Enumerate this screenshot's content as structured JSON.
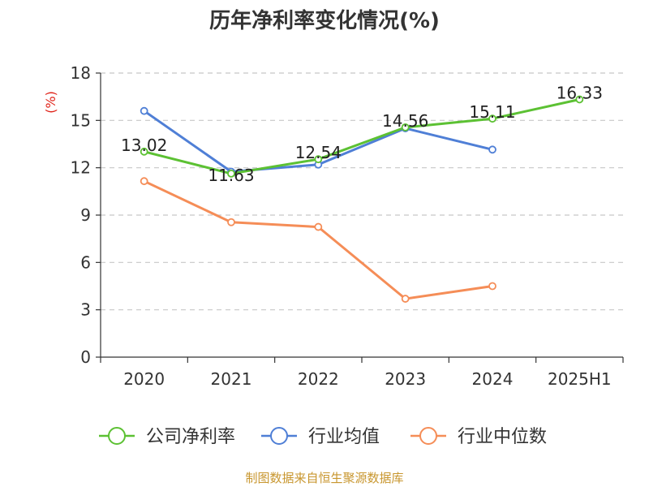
{
  "chart_data": {
    "type": "line",
    "title": "历年净利率变化情况(%)",
    "ylabel": "(%)",
    "ylim": [
      0,
      18
    ],
    "yticks": [
      0,
      3,
      6,
      9,
      12,
      15,
      18
    ],
    "grid": true,
    "legend_position": "bottom",
    "categories": [
      "2020",
      "2021",
      "2022",
      "2023",
      "2024",
      "2025H1"
    ],
    "series": [
      {
        "name": "公司净利率",
        "color": "#5cc133",
        "values": [
          13.02,
          11.63,
          12.54,
          14.56,
          15.11,
          16.33
        ],
        "labels": [
          "13.02",
          "11.63",
          "12.54",
          "14.56",
          "15.11",
          "16.33"
        ]
      },
      {
        "name": "行业均值",
        "color": "#4f7fd6",
        "values": [
          15.6,
          11.75,
          12.2,
          14.5,
          13.15,
          null
        ]
      },
      {
        "name": "行业中位数",
        "color": "#f58d57",
        "values": [
          11.15,
          8.55,
          8.25,
          3.7,
          4.5,
          null
        ]
      }
    ]
  },
  "source": "制图数据来自恒生聚源数据库"
}
